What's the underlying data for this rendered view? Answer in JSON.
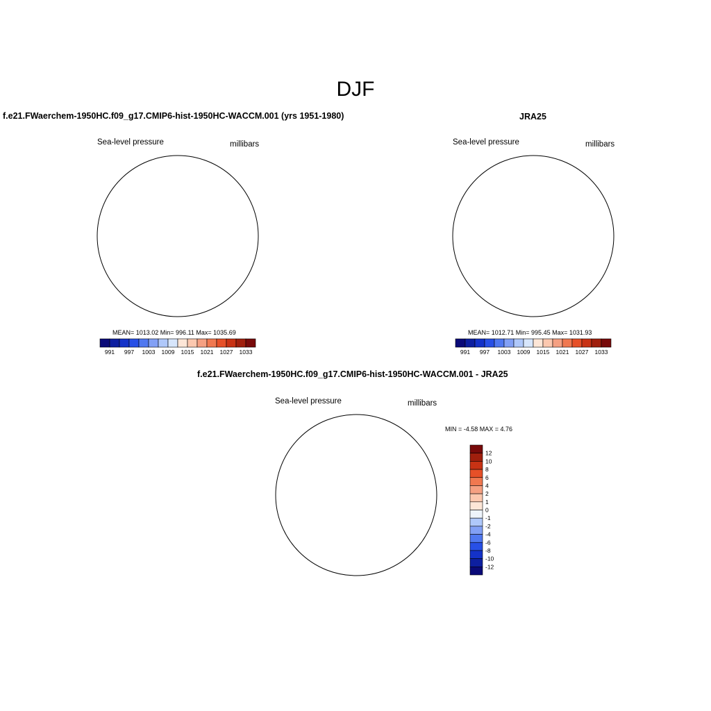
{
  "page": {
    "title": "DJF"
  },
  "panels": [
    {
      "id": "model",
      "title": "f.e21.FWaerchem-1950HC.f09_g17.CMIP6-hist-1950HC-WACCM.001 (yrs 1951-1980)",
      "left_label": "Sea-level pressure",
      "right_label": "millibars",
      "stats": "MEAN= 1013.02   Min= 996.11   Max= 1035.69"
    },
    {
      "id": "obs",
      "title": "JRA25",
      "left_label": "Sea-level pressure",
      "right_label": "millibars",
      "stats": "MEAN= 1012.71   Min= 995.45   Max= 1031.93"
    },
    {
      "id": "diff",
      "title": "f.e21.FWaerchem-1950HC.f09_g17.CMIP6-hist-1950HC-WACCM.001 - JRA25",
      "left_label": "Sea-level pressure",
      "right_label": "millibars",
      "stats": "MIN =  -4.58 MAX =   4.76"
    }
  ],
  "colorbar_abs": {
    "tick_labels": [
      "991",
      "997",
      "1003",
      "1009",
      "1015",
      "1021",
      "1027",
      "1033"
    ],
    "colors": [
      "#0a0a78",
      "#0d1fa0",
      "#1432c8",
      "#2850e6",
      "#5078f0",
      "#82a0f5",
      "#afc8fa",
      "#d7e6fc",
      "#fde6d7",
      "#fcc8af",
      "#f5a082",
      "#f07850",
      "#e65028",
      "#c83214",
      "#a01f0d",
      "#780a0a"
    ]
  },
  "colorbar_diff": {
    "tick_labels": [
      "12",
      "10",
      "8",
      "6",
      "4",
      "2",
      "1",
      "0",
      "-1",
      "-2",
      "-4",
      "-6",
      "-8",
      "-10",
      "-12"
    ],
    "colors": [
      "#780a0a",
      "#a01f0d",
      "#c83214",
      "#e65028",
      "#f07850",
      "#f5a082",
      "#fcc8af",
      "#fde6d7",
      "#eef4fb",
      "#afc8fa",
      "#82a0f5",
      "#5078f0",
      "#2850e6",
      "#1432c8",
      "#0d1fa0",
      "#0a0a78"
    ]
  }
}
